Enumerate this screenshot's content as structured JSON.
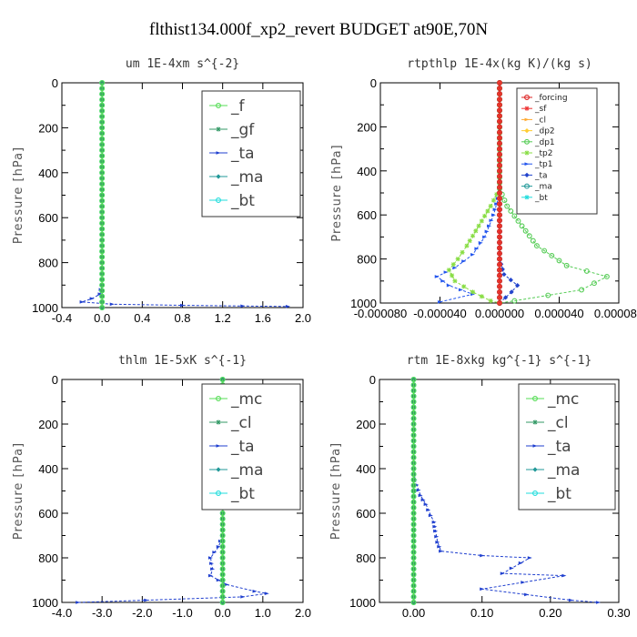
{
  "suptitle": "flthist134.000f_xp2_revert  BUDGET at90E,70N",
  "chart_data": [
    {
      "type": "line",
      "title": "um   1E-4xm s^{-2}",
      "ylabel": "Pressure [hPa]",
      "xlim": [
        -0.4,
        2.0
      ],
      "ylim": [
        1000,
        0
      ],
      "xticks": [
        "-0.4",
        "0.0",
        "0.4",
        "0.8",
        "1.2",
        "1.6",
        "2.0"
      ],
      "yticks": [
        "0",
        "200",
        "400",
        "600",
        "800",
        "1000"
      ],
      "legend_style": "big",
      "series": [
        {
          "name": "_f",
          "color": "#55dd55",
          "points": [
            [
              0,
              0
            ],
            [
              0,
              100
            ],
            [
              0,
              200
            ],
            [
              0,
              300
            ],
            [
              0,
              400
            ],
            [
              0,
              500
            ],
            [
              0,
              600
            ],
            [
              0,
              700
            ],
            [
              0,
              800
            ],
            [
              0,
              900
            ],
            [
              0,
              1000
            ]
          ]
        },
        {
          "name": "_gf",
          "color": "#339966",
          "points": [
            [
              0,
              0
            ],
            [
              0,
              100
            ],
            [
              0,
              200
            ],
            [
              0,
              300
            ],
            [
              0,
              400
            ],
            [
              0,
              500
            ],
            [
              0,
              600
            ],
            [
              0,
              700
            ],
            [
              0,
              800
            ],
            [
              0,
              900
            ],
            [
              0,
              1000
            ]
          ]
        },
        {
          "name": "_ta",
          "color": "#1f3fcf",
          "points": [
            [
              0,
              0
            ],
            [
              0,
              500
            ],
            [
              0,
              900
            ],
            [
              -0.02,
              940
            ],
            [
              -0.1,
              960
            ],
            [
              -0.2,
              975
            ],
            [
              0.1,
              985
            ],
            [
              0.8,
              990
            ],
            [
              1.4,
              993
            ],
            [
              1.85,
              995
            ]
          ]
        },
        {
          "name": "_ma",
          "color": "#229999",
          "points": [
            [
              0,
              0
            ],
            [
              0,
              1000
            ]
          ]
        },
        {
          "name": "_bt",
          "color": "#22dddd",
          "points": [
            [
              0,
              0
            ],
            [
              0,
              1000
            ]
          ]
        }
      ]
    },
    {
      "type": "line",
      "title": "rtpthlp   1E-4x(kg K)/(kg s)",
      "ylabel": "Pressure [hPa]",
      "xlim": [
        -8e-05,
        8e-05
      ],
      "ylim": [
        1000,
        0
      ],
      "xticks": [
        "-0.000080",
        "-0.000040",
        "0.000000",
        "0.000040",
        "0.000080"
      ],
      "yticks": [
        "0",
        "200",
        "400",
        "600",
        "800",
        "1000"
      ],
      "legend_style": "small",
      "series": [
        {
          "name": "_forcing",
          "color": "#dd2222",
          "points": [
            [
              0,
              0
            ],
            [
              0,
              1000
            ]
          ]
        },
        {
          "name": "_sf",
          "color": "#ee3333",
          "points": [
            [
              0,
              0
            ],
            [
              0,
              1000
            ]
          ]
        },
        {
          "name": "_cl",
          "color": "#ffaa33",
          "points": [
            [
              0,
              0
            ],
            [
              0,
              1000
            ]
          ]
        },
        {
          "name": "_dp2",
          "color": "#ffcc33",
          "points": [
            [
              0,
              0
            ],
            [
              0,
              1000
            ]
          ]
        },
        {
          "name": "_dp1",
          "color": "#55cc55",
          "points": [
            [
              0,
              0
            ],
            [
              0,
              480
            ],
            [
              5e-06,
              560
            ],
            [
              1.5e-05,
              650
            ],
            [
              2.5e-05,
              740
            ],
            [
              4.5e-05,
              830
            ],
            [
              7.2e-05,
              880
            ],
            [
              5.5e-05,
              940
            ],
            [
              1e-05,
              990
            ],
            [
              0,
              1000
            ]
          ]
        },
        {
          "name": "_tp2",
          "color": "#88dd44",
          "points": [
            [
              0,
              0
            ],
            [
              0,
              480
            ],
            [
              -6e-06,
              560
            ],
            [
              -1.4e-05,
              650
            ],
            [
              -2.2e-05,
              740
            ],
            [
              -2.8e-05,
              800
            ],
            [
              -3.4e-05,
              850
            ],
            [
              -3e-05,
              900
            ],
            [
              -1.8e-05,
              950
            ],
            [
              -6e-06,
              990
            ],
            [
              0,
              1000
            ]
          ]
        },
        {
          "name": "_tp1",
          "color": "#2255ee",
          "points": [
            [
              0,
              0
            ],
            [
              0,
              500
            ],
            [
              -4e-06,
              600
            ],
            [
              -1e-05,
              700
            ],
            [
              -1.8e-05,
              780
            ],
            [
              -3e-05,
              840
            ],
            [
              -4.2e-05,
              880
            ],
            [
              -3.4e-05,
              920
            ],
            [
              -1.8e-05,
              960
            ],
            [
              -4e-05,
              995
            ]
          ]
        },
        {
          "name": "_ta",
          "color": "#2244cc",
          "points": [
            [
              0,
              0
            ],
            [
              0,
              800
            ],
            [
              3e-06,
              870
            ],
            [
              1.2e-05,
              920
            ],
            [
              8e-06,
              950
            ],
            [
              0,
              1000
            ]
          ]
        },
        {
          "name": "_ma",
          "color": "#229999",
          "points": [
            [
              0,
              0
            ],
            [
              0,
              1000
            ]
          ]
        },
        {
          "name": "_bt",
          "color": "#22dddd",
          "points": [
            [
              0,
              0
            ],
            [
              0,
              1000
            ]
          ]
        }
      ]
    },
    {
      "type": "line",
      "title": "thlm   1E-5xK s^{-1}",
      "ylabel": "Pressure [hPa]",
      "xlim": [
        -4.0,
        2.0
      ],
      "ylim": [
        1000,
        0
      ],
      "xticks": [
        "-4.0",
        "-3.0",
        "-2.0",
        "-1.0",
        "0.0",
        "1.0",
        "2.0"
      ],
      "yticks": [
        "0",
        "200",
        "400",
        "600",
        "800",
        "1000"
      ],
      "legend_style": "big",
      "series": [
        {
          "name": "_mc",
          "color": "#55dd55",
          "points": [
            [
              0,
              0
            ],
            [
              0,
              100
            ],
            [
              0,
              200
            ],
            [
              0,
              300
            ],
            [
              0,
              400
            ],
            [
              0,
              500
            ],
            [
              0,
              600
            ],
            [
              0,
              700
            ],
            [
              0,
              800
            ],
            [
              0,
              900
            ],
            [
              0,
              1000
            ]
          ]
        },
        {
          "name": "_cl",
          "color": "#339966",
          "points": [
            [
              0,
              0
            ],
            [
              0,
              1000
            ]
          ]
        },
        {
          "name": "_ta",
          "color": "#1f3fcf",
          "points": [
            [
              0,
              0
            ],
            [
              0,
              700
            ],
            [
              -0.1,
              750
            ],
            [
              -0.3,
              800
            ],
            [
              -0.25,
              850
            ],
            [
              -0.3,
              880
            ],
            [
              0.1,
              920
            ],
            [
              0.8,
              950
            ],
            [
              1.1,
              960
            ],
            [
              0.5,
              975
            ],
            [
              -1.9,
              990
            ],
            [
              -3.6,
              1000
            ]
          ]
        },
        {
          "name": "_ma",
          "color": "#229999",
          "points": [
            [
              0,
              0
            ],
            [
              0,
              1000
            ]
          ]
        },
        {
          "name": "_bt",
          "color": "#22dddd",
          "points": [
            [
              0,
              0
            ],
            [
              0,
              1000
            ]
          ]
        }
      ]
    },
    {
      "type": "line",
      "title": "rtm   1E-8xkg kg^{-1} s^{-1}",
      "ylabel": "Pressure [hPa]",
      "xlim": [
        -0.05,
        0.3
      ],
      "ylim": [
        1000,
        0
      ],
      "xticks": [
        "0.00",
        "0.10",
        "0.20",
        "0.30"
      ],
      "yticks": [
        "0",
        "200",
        "400",
        "600",
        "800",
        "1000"
      ],
      "legend_style": "big",
      "series": [
        {
          "name": "_mc",
          "color": "#55dd55",
          "points": [
            [
              0,
              0
            ],
            [
              0,
              100
            ],
            [
              0,
              200
            ],
            [
              0,
              300
            ],
            [
              0,
              400
            ],
            [
              0,
              500
            ],
            [
              0,
              600
            ],
            [
              0,
              700
            ],
            [
              0,
              800
            ],
            [
              0,
              900
            ],
            [
              0,
              1000
            ]
          ]
        },
        {
          "name": "_cl",
          "color": "#339966",
          "points": [
            [
              0,
              0
            ],
            [
              0,
              1000
            ]
          ]
        },
        {
          "name": "_ta",
          "color": "#1f3fcf",
          "points": [
            [
              0,
              0
            ],
            [
              0,
              400
            ],
            [
              0.002,
              450
            ],
            [
              0.01,
              520
            ],
            [
              0.018,
              560
            ],
            [
              0.025,
              610
            ],
            [
              0.03,
              640
            ],
            [
              0.032,
              680
            ],
            [
              0.035,
              730
            ],
            [
              0.04,
              770
            ],
            [
              0.1,
              790
            ],
            [
              0.17,
              800
            ],
            [
              0.13,
              870
            ],
            [
              0.22,
              880
            ],
            [
              0.1,
              940
            ],
            [
              0.23,
              990
            ],
            [
              0.27,
              1000
            ]
          ]
        },
        {
          "name": "_ma",
          "color": "#229999",
          "points": [
            [
              0,
              0
            ],
            [
              0,
              1000
            ]
          ]
        },
        {
          "name": "_bt",
          "color": "#22dddd",
          "points": [
            [
              0,
              0
            ],
            [
              0,
              1000
            ]
          ]
        }
      ]
    }
  ]
}
